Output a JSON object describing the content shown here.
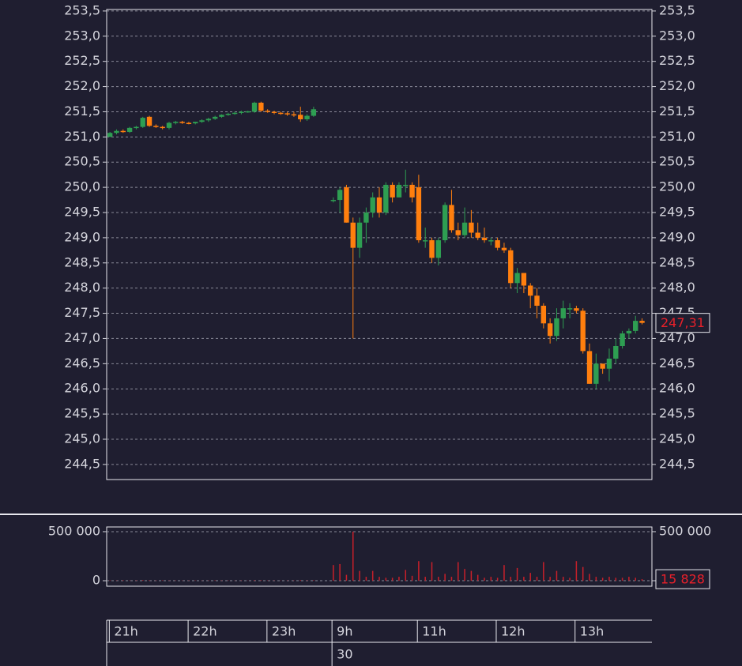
{
  "chart_data": [
    {
      "type": "candlestick",
      "xlim": [
        0,
        83
      ],
      "xticks": [
        {
          "value": 0.4,
          "label": "21h"
        },
        {
          "value": 12.4,
          "label": "22h"
        },
        {
          "value": 24.4,
          "label": "23h"
        },
        {
          "value": 34.3,
          "label": "9h"
        },
        {
          "value": 47.3,
          "label": "11h"
        },
        {
          "value": 59.3,
          "label": "12h"
        },
        {
          "value": 71.3,
          "label": "13h"
        }
      ],
      "date_labels": [
        {
          "value": 34.3,
          "label": "30"
        }
      ],
      "ylim": [
        244.2,
        253.53
      ],
      "yticks": [
        {
          "value": 244.5,
          "label": "244,5"
        },
        {
          "value": 245,
          "label": "245,0"
        },
        {
          "value": 245.5,
          "label": "245,5"
        },
        {
          "value": 246,
          "label": "246,0"
        },
        {
          "value": 246.5,
          "label": "246,5"
        },
        {
          "value": 247,
          "label": "247,0"
        },
        {
          "value": 247.5,
          "label": "247,5"
        },
        {
          "value": 248,
          "label": "248,0"
        },
        {
          "value": 248.5,
          "label": "248,5"
        },
        {
          "value": 249,
          "label": "249,0"
        },
        {
          "value": 249.5,
          "label": "249,5"
        },
        {
          "value": 250,
          "label": "250,0"
        },
        {
          "value": 250.5,
          "label": "250,5"
        },
        {
          "value": 251,
          "label": "251,0"
        },
        {
          "value": 251.5,
          "label": "251,5"
        },
        {
          "value": 252,
          "label": "252,0"
        },
        {
          "value": 252.5,
          "label": "252,5"
        },
        {
          "value": 253,
          "label": "253,0"
        },
        {
          "value": 253.5,
          "label": "253,5"
        }
      ],
      "grid": true,
      "up_color": "#2e9e52",
      "down_color": "#ff7f0e",
      "last_price": {
        "value": 247.31,
        "label": "247,31"
      },
      "open": [
        251.0,
        251.08,
        251.12,
        251.1,
        251.18,
        251.2,
        251.4,
        251.22,
        251.2,
        251.18,
        251.3,
        251.3,
        251.28,
        251.27,
        251.3,
        251.33,
        251.36,
        251.4,
        251.44,
        251.46,
        251.48,
        251.5,
        251.5,
        251.68,
        251.52,
        251.5,
        251.48,
        251.47,
        251.45,
        251.44,
        251.35,
        251.42,
        null,
        null,
        249.75,
        249.75,
        250.0,
        249.3,
        248.8,
        249.3,
        249.5,
        249.8,
        249.5,
        250.05,
        249.8,
        250.05,
        250.05,
        250.0,
        248.95,
        248.95,
        248.6,
        248.95,
        249.65,
        249.15,
        249.05,
        249.3,
        249.1,
        249.0,
        248.95,
        248.95,
        248.8,
        248.75,
        248.1,
        248.3,
        248.05,
        247.85,
        247.65,
        247.3,
        247.05,
        247.4,
        247.6,
        247.6,
        247.55,
        246.75,
        246.1,
        246.5,
        246.4,
        246.6,
        246.85,
        247.1,
        247.15,
        247.35
      ],
      "high": [
        251.1,
        251.15,
        251.15,
        251.2,
        251.22,
        251.4,
        251.42,
        251.25,
        251.22,
        251.3,
        251.32,
        251.32,
        251.3,
        251.3,
        251.35,
        251.38,
        251.42,
        251.45,
        251.48,
        251.5,
        251.52,
        251.52,
        251.7,
        251.7,
        251.55,
        251.52,
        251.5,
        251.5,
        251.5,
        251.6,
        251.45,
        251.6,
        null,
        null,
        249.8,
        250.0,
        250.05,
        249.4,
        249.4,
        249.6,
        249.9,
        250.0,
        250.1,
        250.1,
        250.1,
        250.35,
        250.1,
        250.25,
        249.2,
        249.0,
        249.0,
        249.7,
        249.95,
        249.3,
        249.6,
        249.55,
        249.3,
        249.2,
        249.0,
        249.0,
        248.9,
        248.8,
        248.4,
        248.3,
        248.1,
        248.0,
        247.7,
        247.4,
        247.6,
        247.75,
        247.7,
        247.65,
        247.6,
        246.9,
        246.7,
        246.5,
        246.8,
        247.0,
        247.15,
        247.2,
        247.45,
        247.4
      ],
      "low": [
        251.0,
        251.05,
        251.08,
        251.08,
        251.15,
        251.18,
        251.2,
        251.18,
        251.15,
        251.15,
        251.25,
        251.26,
        251.25,
        251.25,
        251.28,
        251.3,
        251.34,
        251.38,
        251.42,
        251.44,
        251.45,
        251.48,
        251.48,
        251.5,
        251.48,
        251.45,
        251.44,
        251.42,
        251.4,
        251.3,
        251.32,
        251.4,
        null,
        null,
        249.7,
        249.5,
        249.3,
        247.0,
        248.6,
        248.9,
        249.4,
        249.4,
        249.45,
        249.7,
        249.8,
        249.9,
        249.7,
        248.9,
        248.8,
        248.5,
        248.45,
        248.9,
        249.1,
        248.95,
        249.0,
        249.0,
        248.95,
        248.9,
        248.85,
        248.75,
        248.7,
        248.0,
        247.9,
        247.9,
        247.6,
        247.4,
        247.2,
        246.9,
        246.95,
        247.2,
        247.4,
        247.5,
        246.7,
        246.1,
        246.0,
        246.3,
        246.15,
        246.5,
        246.8,
        247.0,
        247.1,
        247.28
      ],
      "close": [
        251.08,
        251.12,
        251.1,
        251.18,
        251.2,
        251.38,
        251.22,
        251.2,
        251.18,
        251.28,
        251.3,
        251.28,
        251.27,
        251.3,
        251.33,
        251.36,
        251.4,
        251.44,
        251.46,
        251.48,
        251.5,
        251.51,
        251.68,
        251.52,
        251.5,
        251.48,
        251.47,
        251.45,
        251.44,
        251.35,
        251.42,
        251.55,
        null,
        null,
        249.75,
        249.95,
        249.3,
        248.8,
        249.3,
        249.5,
        249.8,
        249.5,
        250.05,
        249.8,
        250.05,
        250.05,
        249.8,
        248.95,
        248.95,
        248.6,
        248.95,
        249.65,
        249.15,
        249.05,
        249.3,
        249.1,
        249.0,
        248.95,
        248.95,
        248.8,
        248.75,
        248.1,
        248.3,
        248.05,
        247.85,
        247.65,
        247.3,
        247.05,
        247.4,
        247.6,
        247.6,
        247.55,
        246.75,
        246.1,
        246.5,
        246.4,
        246.6,
        246.85,
        247.1,
        247.15,
        247.35,
        247.31
      ]
    },
    {
      "type": "bar",
      "ylim": [
        -56000,
        548000
      ],
      "yticks": [
        0,
        {
          "value": 500000,
          "label": "500 000"
        }
      ],
      "grid": true,
      "color": "#c8202a",
      "last_label": "15 828",
      "values": [
        4000,
        3000,
        5000,
        3000,
        4000,
        6000,
        5000,
        3000,
        4000,
        3000,
        3000,
        2000,
        3000,
        3000,
        2000,
        3000,
        4000,
        3000,
        3000,
        2000,
        3000,
        2000,
        6000,
        5000,
        3000,
        3000,
        2000,
        3000,
        3000,
        6000,
        4000,
        5000,
        null,
        null,
        160000,
        170000,
        60000,
        500000,
        100000,
        40000,
        100000,
        40000,
        30000,
        30000,
        40000,
        110000,
        50000,
        200000,
        40000,
        190000,
        40000,
        70000,
        40000,
        190000,
        120000,
        100000,
        60000,
        30000,
        40000,
        30000,
        160000,
        40000,
        130000,
        40000,
        80000,
        40000,
        190000,
        40000,
        100000,
        40000,
        30000,
        200000,
        140000,
        70000,
        40000,
        30000,
        40000,
        30000,
        30000,
        40000,
        30000,
        15828
      ]
    }
  ]
}
